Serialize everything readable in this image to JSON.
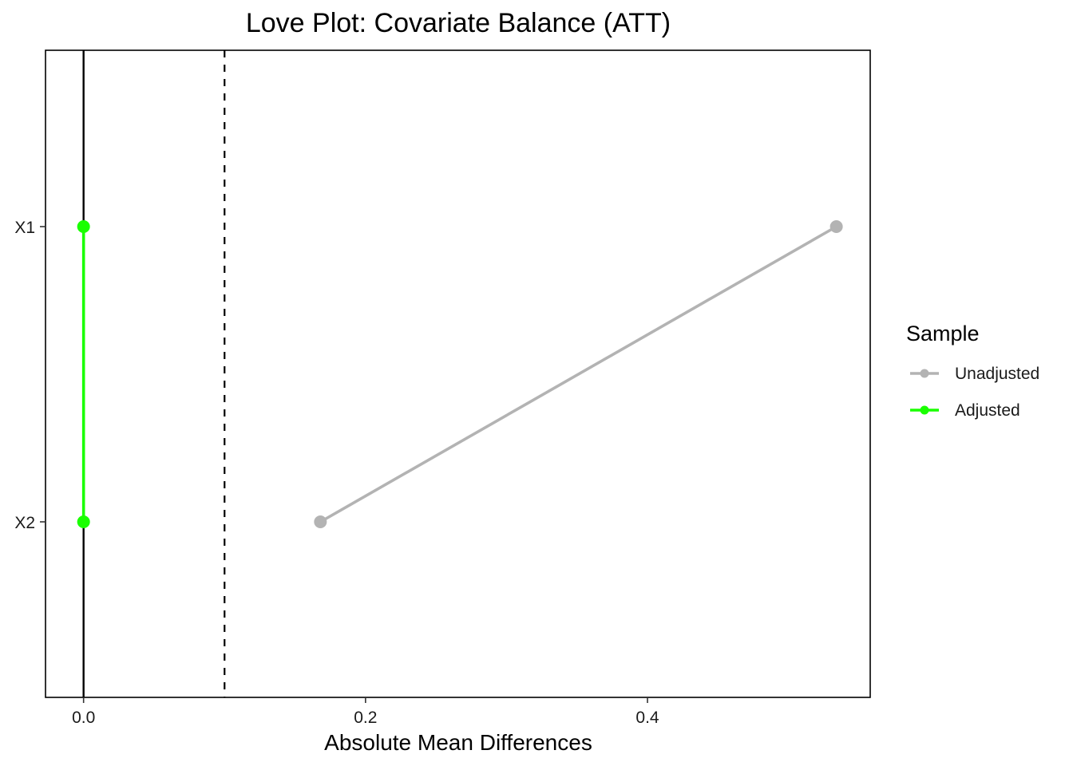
{
  "chart_data": {
    "type": "scatter",
    "title": "Love Plot: Covariate Balance (ATT)",
    "xlabel": "Absolute Mean Differences",
    "ylabel": "",
    "categories": [
      "X1",
      "X2"
    ],
    "xlim": [
      -0.027,
      0.558
    ],
    "xticks": [
      0.0,
      0.2,
      0.4
    ],
    "xtick_labels": [
      "0.0",
      "0.2",
      "0.4"
    ],
    "threshold": 0.1,
    "reference_line": 0,
    "series": [
      {
        "name": "Unadjusted",
        "color": "#b3b3b3",
        "values": [
          0.534,
          0.168
        ]
      },
      {
        "name": "Adjusted",
        "color": "#1aff00",
        "values": [
          0.0,
          0.0
        ]
      }
    ],
    "legend": {
      "title": "Sample",
      "position": "right"
    },
    "grid": false
  }
}
